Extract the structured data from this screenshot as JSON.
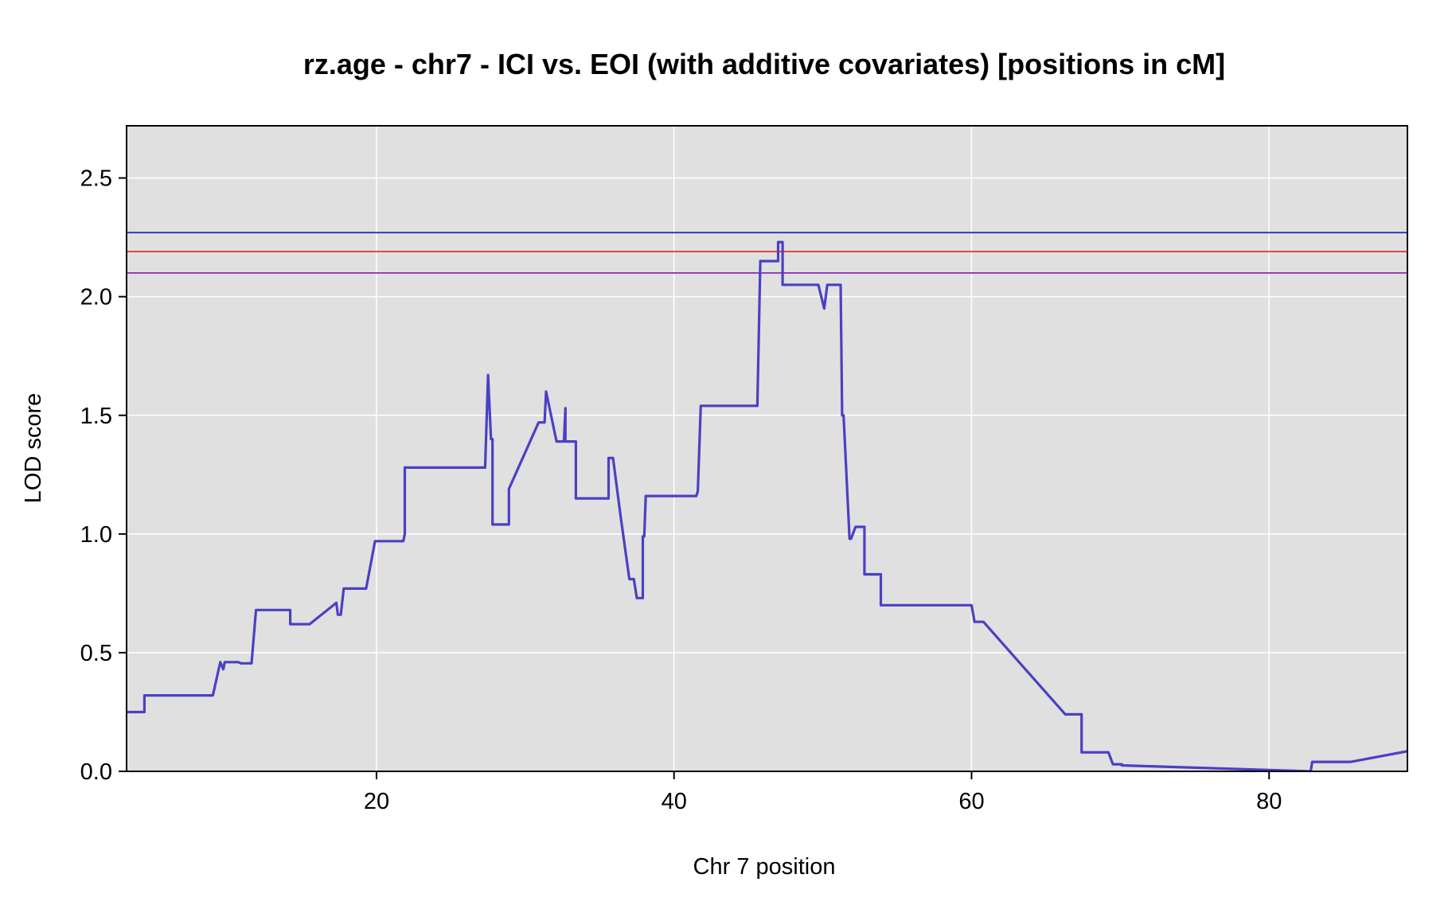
{
  "chart_data": {
    "type": "line",
    "title": "rz.age - chr7 - ICI vs. EOI (with additive covariates) [positions in cM]",
    "xlabel": "Chr 7 position",
    "ylabel": "LOD score",
    "xlim": [
      3.2,
      89.3
    ],
    "ylim": [
      0.0,
      2.72
    ],
    "xticks": [
      20,
      40,
      60,
      80
    ],
    "yticks": [
      0.0,
      0.5,
      1.0,
      1.5,
      2.0,
      2.5
    ],
    "xtick_labels": [
      "20",
      "40",
      "60",
      "80"
    ],
    "ytick_labels": [
      "0.0",
      "0.5",
      "1.0",
      "1.5",
      "2.0",
      "2.5"
    ],
    "grid": true,
    "background_color": "#e0e0e0",
    "threshold_lines": [
      {
        "y": 2.27,
        "color": "#2e2eb8"
      },
      {
        "y": 2.19,
        "color": "#e8302a"
      },
      {
        "y": 2.1,
        "color": "#8a2bb8"
      }
    ],
    "series": [
      {
        "color": "#4b40c4",
        "x": [
          3.2,
          4.4,
          4.4,
          9.0,
          9.5,
          9.7,
          9.8,
          10.7,
          10.9,
          11.6,
          11.9,
          14.2,
          14.2,
          15.5,
          17.3,
          17.4,
          17.6,
          17.8,
          18.2,
          19.3,
          19.9,
          21.8,
          21.9,
          21.9,
          27.3,
          27.5,
          27.7,
          27.8,
          27.8,
          27.9,
          28.9,
          28.9,
          30.9,
          31.3,
          31.4,
          32.1,
          32.6,
          32.7,
          32.7,
          33.4,
          33.4,
          34.4,
          35.6,
          35.6,
          35.9,
          36.4,
          37.0,
          37.3,
          37.5,
          37.9,
          37.9,
          38.0,
          38.1,
          38.3,
          41.5,
          41.6,
          41.8,
          45.6,
          45.8,
          47.0,
          47.0,
          47.3,
          47.3,
          49.3,
          49.7,
          50.1,
          50.3,
          51.2,
          51.3,
          51.4,
          51.8,
          51.9,
          52.2,
          52.8,
          52.8,
          53.9,
          53.9,
          60.0,
          60.2,
          60.8,
          66.3,
          67.4,
          67.4,
          69.2,
          69.5,
          70.1,
          70.1,
          82.8,
          82.9,
          85.5,
          89.3
        ],
        "y": [
          0.25,
          0.25,
          0.32,
          0.32,
          0.46,
          0.43,
          0.46,
          0.46,
          0.455,
          0.455,
          0.68,
          0.68,
          0.62,
          0.62,
          0.71,
          0.66,
          0.66,
          0.77,
          0.77,
          0.77,
          0.97,
          0.97,
          1.0,
          1.28,
          1.28,
          1.67,
          1.4,
          1.4,
          1.04,
          1.04,
          1.04,
          1.19,
          1.47,
          1.47,
          1.6,
          1.39,
          1.39,
          1.53,
          1.39,
          1.39,
          1.15,
          1.15,
          1.15,
          1.32,
          1.32,
          1.08,
          0.81,
          0.81,
          0.73,
          0.73,
          0.99,
          0.99,
          1.16,
          1.16,
          1.16,
          1.18,
          1.54,
          1.54,
          2.15,
          2.15,
          2.23,
          2.23,
          2.05,
          2.05,
          2.05,
          1.95,
          2.05,
          2.05,
          1.5,
          1.5,
          0.98,
          0.98,
          1.03,
          1.03,
          0.83,
          0.83,
          0.7,
          0.7,
          0.63,
          0.63,
          0.24,
          0.24,
          0.08,
          0.08,
          0.03,
          0.03,
          0.025,
          0.0,
          0.04,
          0.04,
          0.085
        ]
      }
    ]
  }
}
